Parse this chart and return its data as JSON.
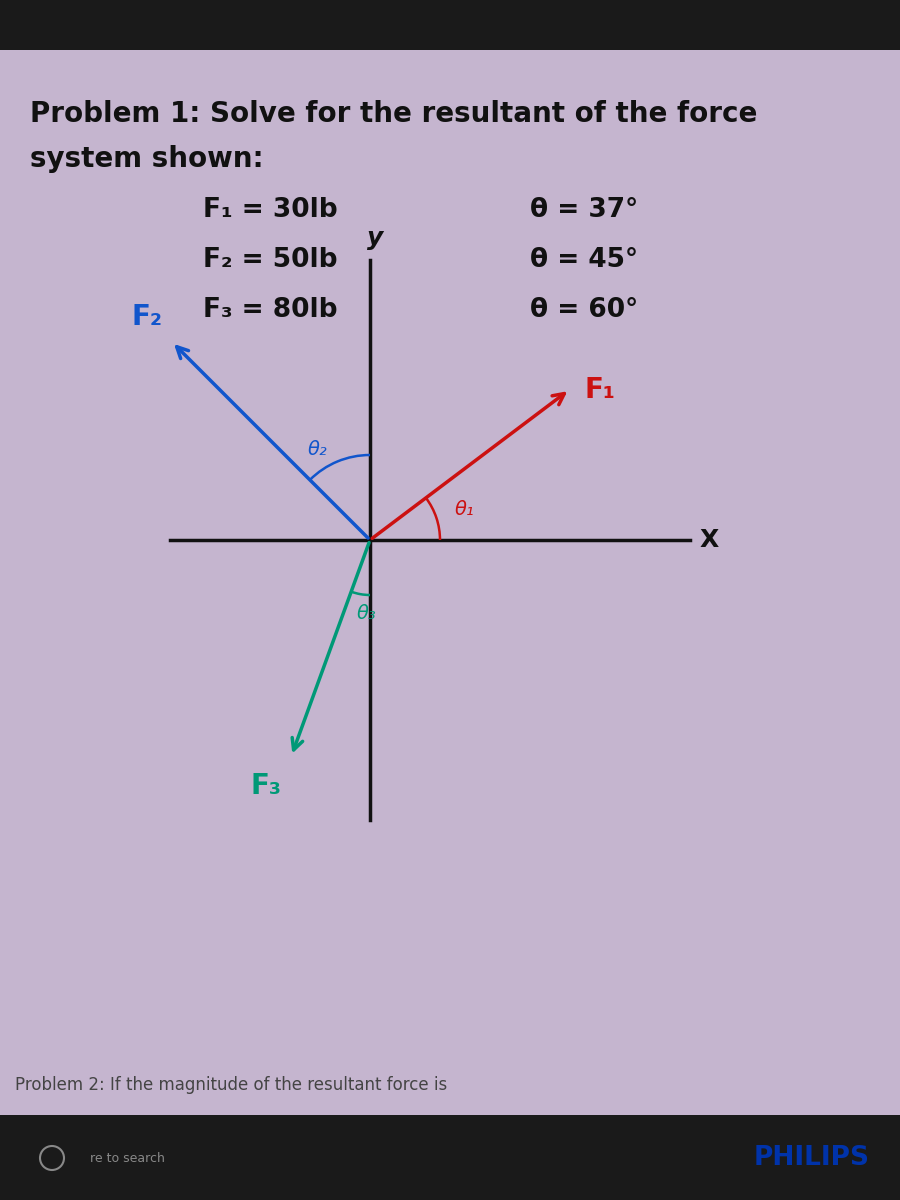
{
  "background_color": "#c5b5cf",
  "title_line1": "Problem 1: Solve for the resultant of the force",
  "title_line2": "system shown:",
  "title_fontsize": 20,
  "title_color": "#111111",
  "given_rows": [
    {
      "force": "F₁ = 30lb",
      "angle": "θ = 37°"
    },
    {
      "force": "F₂ = 50lb",
      "angle": "θ = 45°"
    },
    {
      "force": "F₃ = 80lb",
      "angle": "θ = 60°"
    }
  ],
  "given_fontsize": 19,
  "axis_color": "#111111",
  "F1_color": "#cc1111",
  "F2_color": "#1155cc",
  "F3_color": "#009977",
  "arc_color_1": "#cc1111",
  "arc_color_2": "#1155cc",
  "arc_color_3": "#009977",
  "bottom_text": "Problem 2: If the magnitude of the resultant force is",
  "taskbar_color": "#1a1a1a",
  "philips_color": "#0033aa",
  "philips_text": "PHILIPS"
}
